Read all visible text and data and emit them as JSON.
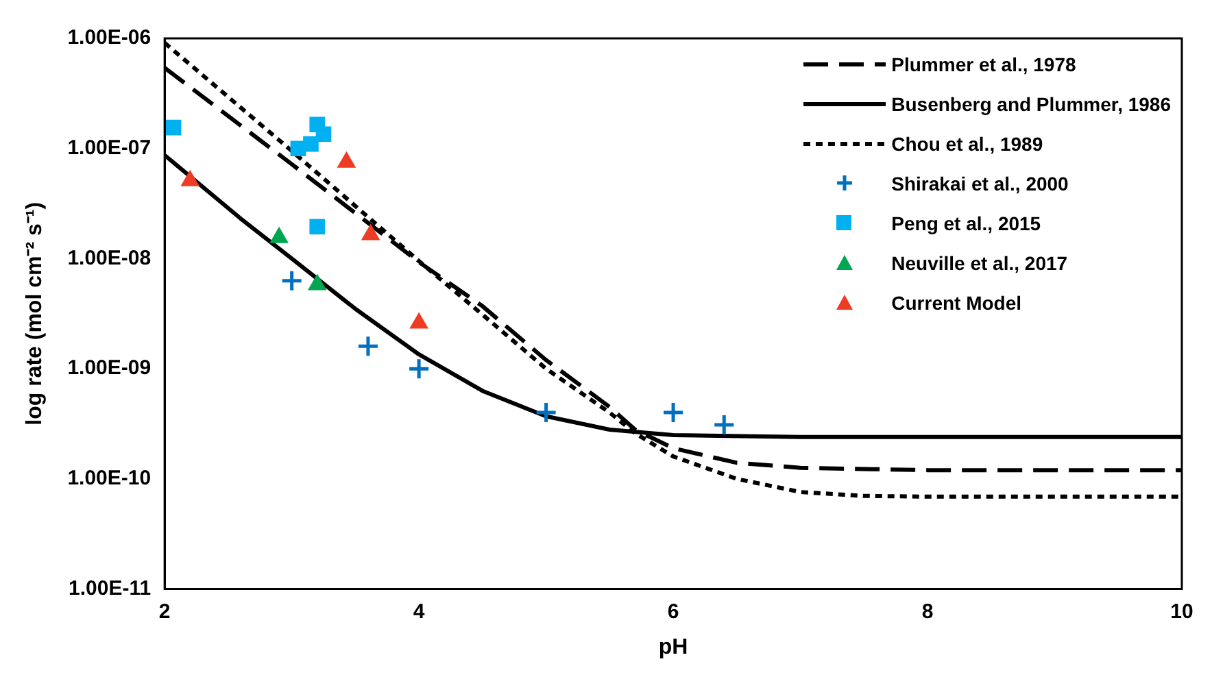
{
  "chart_data": {
    "type": "line",
    "xlabel": "pH",
    "ylabel": "log rate (mol cm⁻² s⁻¹)",
    "xlim": [
      2,
      10
    ],
    "xticks": [
      2,
      4,
      6,
      8,
      10
    ],
    "ylim": [
      1e-11,
      1e-06
    ],
    "log": "y",
    "yticks": [
      {
        "value": 1e-11,
        "label": "1.00E-11"
      },
      {
        "value": 1e-10,
        "label": "1.00E-10"
      },
      {
        "value": 1e-09,
        "label": "1.00E-09"
      },
      {
        "value": 1e-08,
        "label": "1.00E-08"
      },
      {
        "value": 1e-07,
        "label": "1.00E-07"
      },
      {
        "value": 1e-06,
        "label": "1.00E-06"
      }
    ],
    "grid": false,
    "legend": "top right",
    "series": [
      {
        "name": "Plummer et al., 1978",
        "line_style": "dashed",
        "marker": "none",
        "color": "#000000",
        "x": [
          2,
          3,
          4,
          4.5,
          5,
          5.5,
          5.7,
          6,
          6.5,
          7,
          8,
          10
        ],
        "values": [
          5.4e-07,
          7.2e-08,
          9.3e-09,
          3.7e-09,
          1.2e-09,
          4.5e-10,
          2.8e-10,
          1.9e-10,
          1.4e-10,
          1.26e-10,
          1.2e-10,
          1.2e-10
        ]
      },
      {
        "name": "Busenberg and Plummer, 1986",
        "line_style": "solid",
        "marker": "none",
        "color": "#000000",
        "x": [
          2,
          2.6,
          3,
          3.5,
          4,
          4.5,
          5,
          5.5,
          6,
          7,
          10
        ],
        "values": [
          8.7e-08,
          2.3e-08,
          1e-08,
          3.5e-09,
          1.35e-09,
          6.3e-10,
          3.7e-10,
          2.8e-10,
          2.5e-10,
          2.4e-10,
          2.4e-10
        ]
      },
      {
        "name": "Chou et al., 1989",
        "line_style": "dotted",
        "marker": "none",
        "color": "#000000",
        "x": [
          2,
          3,
          4,
          4.5,
          5,
          5.5,
          5.7,
          6,
          6.5,
          7,
          7.5,
          8,
          10
        ],
        "values": [
          9.1e-07,
          9.5e-08,
          9.5e-09,
          3.1e-09,
          1e-09,
          4e-10,
          2.6e-10,
          1.6e-10,
          1e-10,
          7.6e-11,
          7e-11,
          6.9e-11,
          6.9e-11
        ]
      },
      {
        "name": "Shirakai et al., 2000",
        "type": "scatter",
        "marker": "cross",
        "color": "#0070c0",
        "x": [
          3,
          3.6,
          4,
          5,
          6,
          6.4
        ],
        "values": [
          6.3e-09,
          1.6e-09,
          1e-09,
          4e-10,
          4e-10,
          3.1e-10
        ]
      },
      {
        "name": "Peng et al., 2015",
        "type": "scatter",
        "marker": "square",
        "color": "#00b0f0",
        "x": [
          2.07,
          3.05,
          3.15,
          3.2,
          3.25,
          3.2
        ],
        "values": [
          1.55e-07,
          1e-07,
          1.1e-07,
          1.65e-07,
          1.35e-07,
          1.95e-08
        ]
      },
      {
        "name": "Neuville et al., 2017",
        "type": "scatter",
        "marker": "triangle",
        "color": "#00a650",
        "x": [
          2.9,
          3.2
        ],
        "values": [
          1.55e-08,
          5.8e-09
        ]
      },
      {
        "name": "Current Model",
        "type": "scatter",
        "marker": "triangle",
        "color": "#ee3b24",
        "x": [
          2.2,
          3.43,
          3.62,
          4
        ],
        "values": [
          5.1e-08,
          7.5e-08,
          1.65e-08,
          2.6e-09
        ]
      }
    ]
  }
}
